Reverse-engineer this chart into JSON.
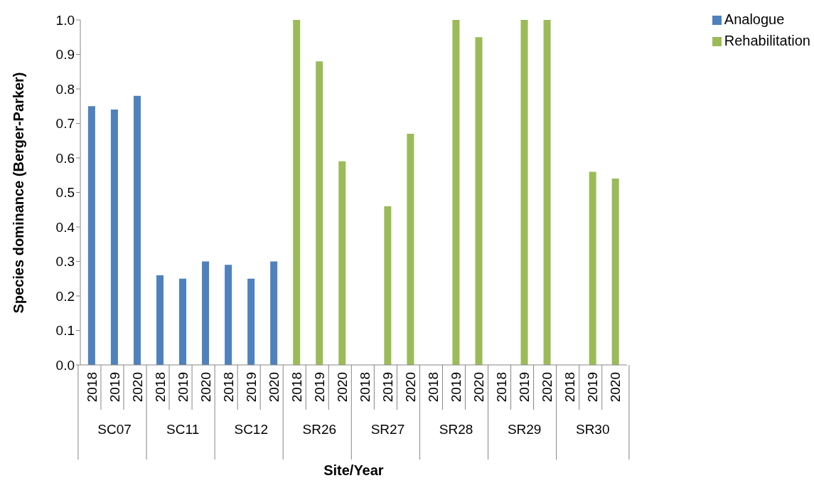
{
  "chart_data": {
    "type": "bar",
    "xlabel": "Site/Year",
    "ylabel": "Species dominance (Berger-Parker)",
    "categories": [
      "2018",
      "2019",
      "2020",
      "2018",
      "2019",
      "2020",
      "2018",
      "2019",
      "2020",
      "2018",
      "2019",
      "2020",
      "2018",
      "2019",
      "2020",
      "2018",
      "2019",
      "2020",
      "2018",
      "2019",
      "2020",
      "2018",
      "2019",
      "2020"
    ],
    "annotations": [
      "SC07",
      "SC11",
      "SC12",
      "SR26",
      "SR27",
      "SR28",
      "SR29",
      "SR30"
    ],
    "series": [
      {
        "name": "Analogue",
        "color": "#4f81bd",
        "values": [
          0.75,
          0.74,
          0.78,
          0.26,
          0.25,
          0.3,
          0.29,
          0.25,
          0.3,
          null,
          null,
          null,
          null,
          null,
          null,
          null,
          null,
          null,
          null,
          null,
          null,
          null,
          null,
          null
        ]
      },
      {
        "name": "Rehabilitation",
        "color": "#9bbb59",
        "values": [
          null,
          null,
          null,
          null,
          null,
          null,
          null,
          null,
          null,
          1.0,
          0.88,
          0.59,
          null,
          0.46,
          0.67,
          null,
          1.0,
          0.95,
          null,
          1.0,
          1.0,
          null,
          0.56,
          0.54
        ]
      }
    ],
    "ylim": [
      0,
      1
    ],
    "yticks": [
      {
        "value": 0,
        "label": "0.0"
      },
      {
        "value": 0.1,
        "label": "0.1"
      },
      {
        "value": 0.2,
        "label": "0.2"
      },
      {
        "value": 0.3,
        "label": "0.3"
      },
      {
        "value": 0.4,
        "label": "0.4"
      },
      {
        "value": 0.5,
        "label": "0.5"
      },
      {
        "value": 0.6,
        "label": "0.6"
      },
      {
        "value": 0.7,
        "label": "0.7"
      },
      {
        "value": 0.8,
        "label": "0.8"
      },
      {
        "value": 0.9,
        "label": "0.9"
      },
      {
        "value": 1,
        "label": "1.0"
      }
    ],
    "legend": "top right",
    "grid": false
  }
}
